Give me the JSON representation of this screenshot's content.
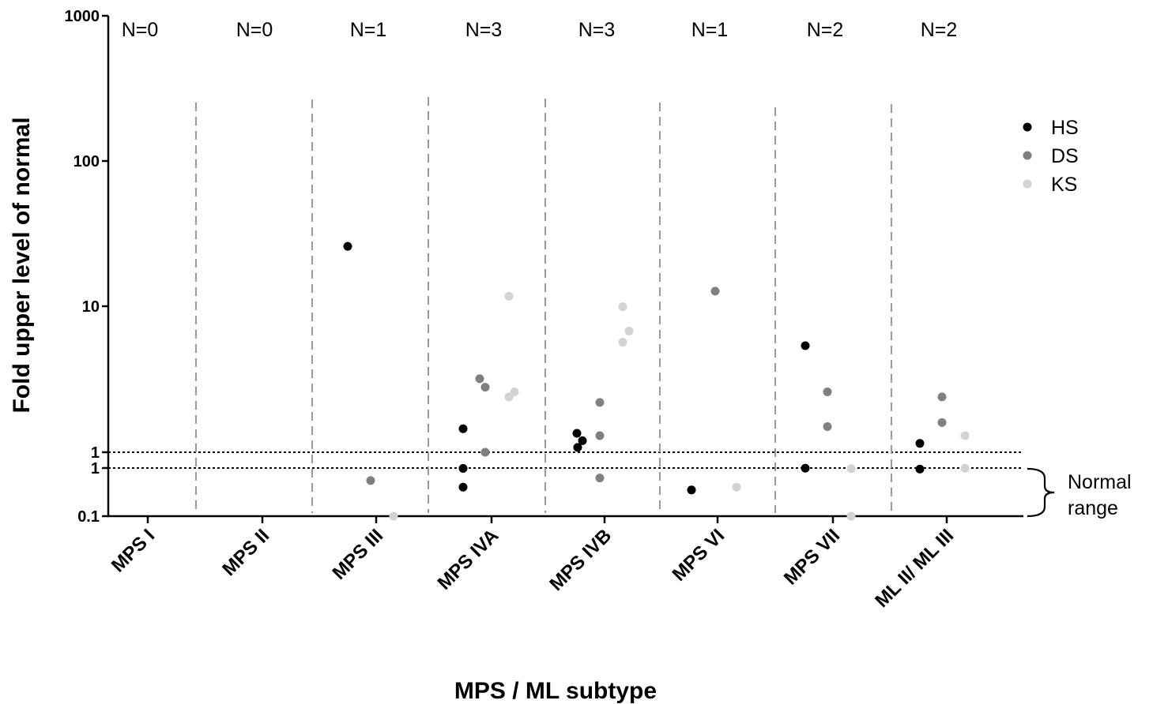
{
  "chart_data": {
    "type": "scatter",
    "title": "",
    "xlabel": "MPS / ML subtype",
    "ylabel": "Fold upper level of normal",
    "y_scale": "log (split axis)",
    "y_ticks": [
      "0.1",
      "1",
      "1",
      "10",
      "100",
      "1000"
    ],
    "categories": [
      "MPS I",
      "MPS II",
      "MPS III",
      "MPS IVA",
      "MPS IVB",
      "MPS VI",
      "MPS VII",
      "ML II/ ML III"
    ],
    "n_labels": [
      "N=0",
      "N=0",
      "N=1",
      "N=3",
      "N=3",
      "N=1",
      "N=2",
      "N=2"
    ],
    "legend_position": "top-right",
    "series": [
      {
        "name": "HS",
        "color": "#000000",
        "points": [
          {
            "category": "MPS III",
            "y": 26
          },
          {
            "category": "MPS IVA",
            "y": 1.45
          },
          {
            "category": "MPS IVA",
            "y": 0.98
          },
          {
            "category": "MPS IVA",
            "y": 0.4
          },
          {
            "category": "MPS IVB",
            "y": 1.35
          },
          {
            "category": "MPS IVB",
            "y": 1.2
          },
          {
            "category": "MPS IVB",
            "y": 1.08
          },
          {
            "category": "MPS VI",
            "y": 0.35
          },
          {
            "category": "MPS VII",
            "y": 5.4
          },
          {
            "category": "MPS VII",
            "y": 0.99
          },
          {
            "category": "ML II/ ML III",
            "y": 1.15
          },
          {
            "category": "ML II/ ML III",
            "y": 0.95
          }
        ]
      },
      {
        "name": "DS",
        "color": "#808080",
        "points": [
          {
            "category": "MPS III",
            "y": 0.55
          },
          {
            "category": "MPS IVA",
            "y": 3.2
          },
          {
            "category": "MPS IVA",
            "y": 2.8
          },
          {
            "category": "MPS IVA",
            "y": 1.0
          },
          {
            "category": "MPS IVB",
            "y": 2.2
          },
          {
            "category": "MPS IVB",
            "y": 1.3
          },
          {
            "category": "MPS IVB",
            "y": 0.62
          },
          {
            "category": "MPS VI",
            "y": 12.8
          },
          {
            "category": "MPS VII",
            "y": 2.6
          },
          {
            "category": "MPS VII",
            "y": 1.5
          },
          {
            "category": "ML II/ ML III",
            "y": 2.4
          },
          {
            "category": "ML II/ ML III",
            "y": 1.6
          }
        ]
      },
      {
        "name": "KS",
        "color": "#d3d3d3",
        "points": [
          {
            "category": "MPS III",
            "y": 0.1
          },
          {
            "category": "MPS IVA",
            "y": 11.8
          },
          {
            "category": "MPS IVA",
            "y": 2.6
          },
          {
            "category": "MPS IVA",
            "y": 2.4
          },
          {
            "category": "MPS IVB",
            "y": 10
          },
          {
            "category": "MPS IVB",
            "y": 6.8
          },
          {
            "category": "MPS IVB",
            "y": 5.7
          },
          {
            "category": "MPS VI",
            "y": 0.4
          },
          {
            "category": "MPS VII",
            "y": 0.97
          },
          {
            "category": "MPS VII",
            "y": 0.1
          },
          {
            "category": "ML II/ ML III",
            "y": 1.3
          },
          {
            "category": "ML II/ ML III",
            "y": 0.99
          }
        ]
      }
    ],
    "normal_range_label_1": "Normal",
    "normal_range_label_2": "range"
  }
}
